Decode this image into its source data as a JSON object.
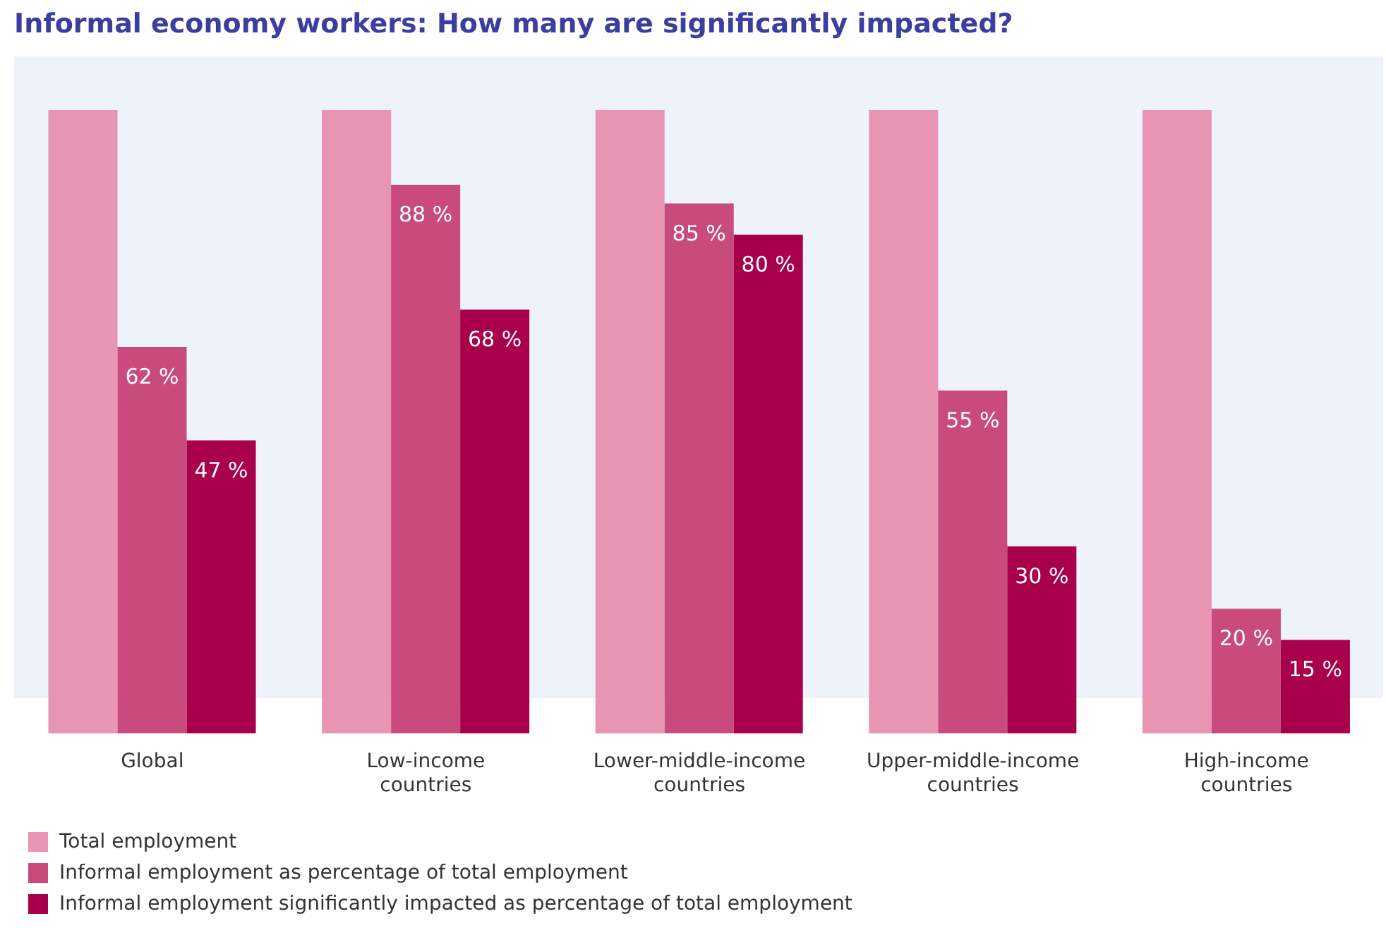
{
  "chart_data": {
    "type": "bar",
    "title": "Informal economy workers: How many are significantly impacted?",
    "categories": [
      "Global",
      "Low-income countries",
      "Lower-middle-income countries",
      "Upper-middle-income countries",
      "High-income countries"
    ],
    "series": [
      {
        "name": "Total employment",
        "color": "#e895b4",
        "values": [
          100,
          100,
          100,
          100,
          100
        ]
      },
      {
        "name": "Informal employment as percentage of total employment",
        "color": "#c94b7d",
        "values": [
          62,
          88,
          85,
          55,
          20
        ],
        "value_labels": [
          "62 %",
          "88 %",
          "85 %",
          "55 %",
          "20 %"
        ]
      },
      {
        "name": "Informal employment significantly impacted as percentage of  total employment",
        "color": "#a8004a",
        "values": [
          47,
          68,
          80,
          30,
          15
        ],
        "value_labels": [
          "47 %",
          "68 %",
          "80 %",
          "30 %",
          "15 %"
        ]
      }
    ],
    "ylim": [
      0,
      100
    ],
    "legend": "bottom left",
    "tick_labels": "x"
  }
}
